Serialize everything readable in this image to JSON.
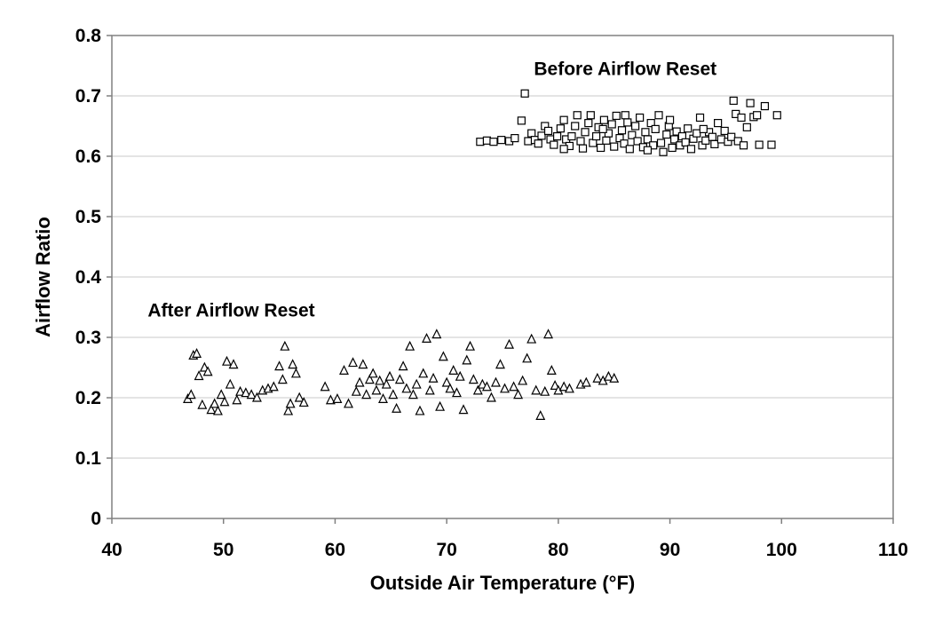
{
  "chart_data": {
    "type": "scatter",
    "title": "",
    "xlabel": "Outside Air Temperature (°F)",
    "ylabel": "Airflow Ratio",
    "xlim": [
      40,
      110
    ],
    "ylim": [
      0,
      0.8
    ],
    "xticks": [
      "40",
      "50",
      "60",
      "70",
      "80",
      "90",
      "100",
      "110"
    ],
    "yticks": [
      "0",
      "0.1",
      "0.2",
      "0.3",
      "0.4",
      "0.5",
      "0.6",
      "0.7",
      "0.8"
    ],
    "grid": "horizontal",
    "legend": "none",
    "annotations": [
      {
        "text": "Before Airflow Reset",
        "x": 86,
        "y": 0.745
      },
      {
        "text": "After Airflow Reset",
        "x": 50.7,
        "y": 0.345
      }
    ],
    "series": [
      {
        "marker": "square",
        "color": "#000000",
        "points": [
          [
            73.0,
            0.624
          ],
          [
            73.6,
            0.626
          ],
          [
            74.2,
            0.624
          ],
          [
            74.9,
            0.627
          ],
          [
            75.6,
            0.625
          ],
          [
            76.1,
            0.63
          ],
          [
            76.7,
            0.659
          ],
          [
            77.0,
            0.704
          ],
          [
            77.3,
            0.625
          ],
          [
            77.6,
            0.638
          ],
          [
            77.9,
            0.627
          ],
          [
            78.2,
            0.621
          ],
          [
            78.5,
            0.634
          ],
          [
            78.8,
            0.65
          ],
          [
            79.1,
            0.642
          ],
          [
            79.3,
            0.628
          ],
          [
            79.6,
            0.619
          ],
          [
            79.9,
            0.633
          ],
          [
            80.2,
            0.646
          ],
          [
            80.5,
            0.66
          ],
          [
            80.7,
            0.628
          ],
          [
            81.0,
            0.617
          ],
          [
            81.2,
            0.633
          ],
          [
            81.5,
            0.65
          ],
          [
            81.7,
            0.668
          ],
          [
            82.0,
            0.625
          ],
          [
            82.2,
            0.613
          ],
          [
            82.4,
            0.64
          ],
          [
            82.7,
            0.655
          ],
          [
            82.9,
            0.668
          ],
          [
            83.1,
            0.622
          ],
          [
            83.4,
            0.633
          ],
          [
            83.6,
            0.648
          ],
          [
            83.8,
            0.614
          ],
          [
            84.1,
            0.66
          ],
          [
            84.3,
            0.626
          ],
          [
            84.5,
            0.638
          ],
          [
            84.8,
            0.653
          ],
          [
            85.0,
            0.616
          ],
          [
            85.2,
            0.667
          ],
          [
            85.5,
            0.63
          ],
          [
            85.7,
            0.643
          ],
          [
            85.9,
            0.621
          ],
          [
            86.2,
            0.656
          ],
          [
            86.4,
            0.612
          ],
          [
            86.6,
            0.635
          ],
          [
            86.9,
            0.65
          ],
          [
            87.1,
            0.625
          ],
          [
            87.3,
            0.664
          ],
          [
            87.6,
            0.615
          ],
          [
            87.8,
            0.64
          ],
          [
            88.0,
            0.628
          ],
          [
            88.3,
            0.655
          ],
          [
            88.5,
            0.618
          ],
          [
            88.7,
            0.645
          ],
          [
            89.0,
            0.668
          ],
          [
            89.2,
            0.622
          ],
          [
            89.4,
            0.607
          ],
          [
            89.7,
            0.636
          ],
          [
            89.9,
            0.65
          ],
          [
            90.2,
            0.614
          ],
          [
            90.4,
            0.628
          ],
          [
            90.6,
            0.641
          ],
          [
            90.9,
            0.618
          ],
          [
            91.1,
            0.633
          ],
          [
            91.4,
            0.623
          ],
          [
            91.6,
            0.646
          ],
          [
            91.9,
            0.612
          ],
          [
            92.1,
            0.629
          ],
          [
            92.4,
            0.638
          ],
          [
            92.7,
            0.664
          ],
          [
            92.9,
            0.618
          ],
          [
            93.2,
            0.626
          ],
          [
            93.5,
            0.64
          ],
          [
            93.8,
            0.632
          ],
          [
            94.0,
            0.62
          ],
          [
            94.3,
            0.655
          ],
          [
            94.6,
            0.628
          ],
          [
            94.9,
            0.642
          ],
          [
            95.2,
            0.624
          ],
          [
            95.5,
            0.632
          ],
          [
            95.7,
            0.692
          ],
          [
            95.9,
            0.67
          ],
          [
            96.1,
            0.625
          ],
          [
            96.4,
            0.664
          ],
          [
            96.6,
            0.618
          ],
          [
            96.9,
            0.648
          ],
          [
            97.2,
            0.688
          ],
          [
            97.5,
            0.665
          ],
          [
            97.8,
            0.668
          ],
          [
            98.0,
            0.619
          ],
          [
            98.5,
            0.683
          ],
          [
            99.1,
            0.619
          ],
          [
            99.6,
            0.668
          ],
          [
            80.5,
            0.612
          ],
          [
            84.0,
            0.645
          ],
          [
            86.0,
            0.668
          ],
          [
            88.0,
            0.61
          ],
          [
            90.0,
            0.66
          ],
          [
            93.0,
            0.645
          ]
        ]
      },
      {
        "marker": "triangle",
        "color": "#000000",
        "points": [
          [
            46.8,
            0.198
          ],
          [
            47.1,
            0.205
          ],
          [
            47.3,
            0.27
          ],
          [
            47.6,
            0.273
          ],
          [
            47.8,
            0.236
          ],
          [
            48.1,
            0.188
          ],
          [
            48.3,
            0.25
          ],
          [
            48.6,
            0.243
          ],
          [
            48.9,
            0.18
          ],
          [
            49.2,
            0.19
          ],
          [
            49.5,
            0.178
          ],
          [
            49.8,
            0.205
          ],
          [
            50.1,
            0.193
          ],
          [
            50.3,
            0.26
          ],
          [
            50.6,
            0.222
          ],
          [
            50.9,
            0.255
          ],
          [
            51.2,
            0.196
          ],
          [
            51.5,
            0.21
          ],
          [
            52.0,
            0.208
          ],
          [
            52.5,
            0.205
          ],
          [
            53.0,
            0.2
          ],
          [
            53.5,
            0.212
          ],
          [
            54.0,
            0.215
          ],
          [
            54.5,
            0.218
          ],
          [
            55.0,
            0.252
          ],
          [
            55.3,
            0.23
          ],
          [
            55.5,
            0.285
          ],
          [
            55.8,
            0.178
          ],
          [
            56.0,
            0.19
          ],
          [
            56.2,
            0.255
          ],
          [
            56.5,
            0.24
          ],
          [
            56.8,
            0.2
          ],
          [
            57.2,
            0.192
          ],
          [
            59.1,
            0.218
          ],
          [
            59.6,
            0.196
          ],
          [
            60.2,
            0.198
          ],
          [
            60.8,
            0.245
          ],
          [
            61.2,
            0.19
          ],
          [
            61.6,
            0.258
          ],
          [
            61.9,
            0.21
          ],
          [
            62.2,
            0.225
          ],
          [
            62.5,
            0.255
          ],
          [
            62.8,
            0.205
          ],
          [
            63.1,
            0.23
          ],
          [
            63.4,
            0.24
          ],
          [
            63.7,
            0.212
          ],
          [
            64.0,
            0.228
          ],
          [
            64.3,
            0.198
          ],
          [
            64.6,
            0.222
          ],
          [
            64.9,
            0.235
          ],
          [
            65.2,
            0.205
          ],
          [
            65.5,
            0.182
          ],
          [
            65.8,
            0.23
          ],
          [
            66.1,
            0.252
          ],
          [
            66.4,
            0.215
          ],
          [
            66.7,
            0.285
          ],
          [
            67.0,
            0.205
          ],
          [
            67.3,
            0.222
          ],
          [
            67.6,
            0.178
          ],
          [
            67.9,
            0.24
          ],
          [
            68.2,
            0.298
          ],
          [
            68.5,
            0.212
          ],
          [
            68.8,
            0.232
          ],
          [
            69.1,
            0.305
          ],
          [
            69.4,
            0.185
          ],
          [
            69.7,
            0.268
          ],
          [
            70.0,
            0.225
          ],
          [
            70.3,
            0.215
          ],
          [
            70.6,
            0.245
          ],
          [
            70.9,
            0.208
          ],
          [
            71.2,
            0.235
          ],
          [
            71.5,
            0.18
          ],
          [
            71.8,
            0.262
          ],
          [
            72.1,
            0.285
          ],
          [
            72.4,
            0.23
          ],
          [
            72.8,
            0.212
          ],
          [
            73.2,
            0.222
          ],
          [
            73.6,
            0.218
          ],
          [
            74.0,
            0.2
          ],
          [
            74.4,
            0.225
          ],
          [
            74.8,
            0.255
          ],
          [
            75.2,
            0.215
          ],
          [
            75.6,
            0.288
          ],
          [
            76.0,
            0.218
          ],
          [
            76.4,
            0.205
          ],
          [
            76.8,
            0.228
          ],
          [
            77.2,
            0.265
          ],
          [
            77.6,
            0.297
          ],
          [
            78.0,
            0.212
          ],
          [
            78.4,
            0.17
          ],
          [
            78.8,
            0.21
          ],
          [
            79.1,
            0.305
          ],
          [
            79.4,
            0.245
          ],
          [
            79.7,
            0.22
          ],
          [
            80.0,
            0.212
          ],
          [
            80.5,
            0.218
          ],
          [
            81.0,
            0.215
          ],
          [
            82.0,
            0.222
          ],
          [
            82.5,
            0.225
          ],
          [
            83.5,
            0.232
          ],
          [
            84.0,
            0.228
          ],
          [
            84.5,
            0.235
          ],
          [
            85.0,
            0.232
          ]
        ]
      }
    ]
  }
}
